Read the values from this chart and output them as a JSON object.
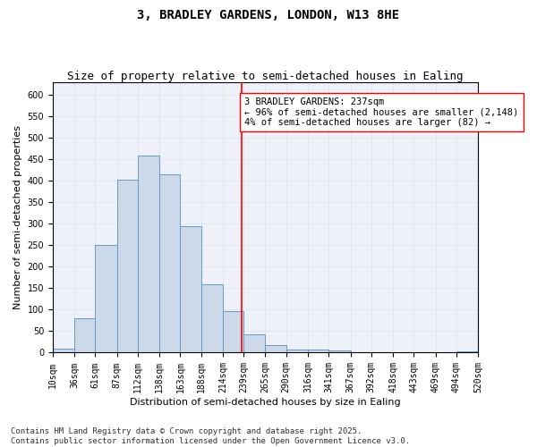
{
  "title_line1": "3, BRADLEY GARDENS, LONDON, W13 8HE",
  "title_line2": "Size of property relative to semi-detached houses in Ealing",
  "xlabel": "Distribution of semi-detached houses by size in Ealing",
  "ylabel": "Number of semi-detached properties",
  "bin_labels": [
    "10sqm",
    "36sqm",
    "61sqm",
    "87sqm",
    "112sqm",
    "138sqm",
    "163sqm",
    "188sqm",
    "214sqm",
    "239sqm",
    "265sqm",
    "290sqm",
    "316sqm",
    "341sqm",
    "367sqm",
    "392sqm",
    "418sqm",
    "443sqm",
    "469sqm",
    "494sqm",
    "520sqm"
  ],
  "bin_edges": [
    10,
    36,
    61,
    87,
    112,
    138,
    163,
    188,
    214,
    239,
    265,
    290,
    316,
    341,
    367,
    392,
    418,
    443,
    469,
    494,
    520
  ],
  "bar_heights": [
    10,
    80,
    250,
    403,
    460,
    415,
    295,
    160,
    97,
    42,
    18,
    7,
    7,
    5,
    0,
    0,
    0,
    0,
    0,
    3
  ],
  "bar_facecolor": "#ccd9e8",
  "bar_edgecolor": "#6699cc",
  "grid_color": "#dde4ee",
  "vline_x": 237,
  "vline_color": "red",
  "annotation_text": "3 BRADLEY GARDENS: 237sqm\n← 96% of semi-detached houses are smaller (2,148)\n4% of semi-detached houses are larger (82) →",
  "annotation_box_edgecolor": "red",
  "annotation_box_facecolor": "white",
  "ylim": [
    0,
    630
  ],
  "yticks": [
    0,
    50,
    100,
    150,
    200,
    250,
    300,
    350,
    400,
    450,
    500,
    550,
    600
  ],
  "footnote": "Contains HM Land Registry data © Crown copyright and database right 2025.\nContains public sector information licensed under the Open Government Licence v3.0.",
  "bg_color": "#eef2f8",
  "title_fontsize": 10,
  "subtitle_fontsize": 9,
  "axis_label_fontsize": 8,
  "tick_fontsize": 7,
  "annotation_fontsize": 7.5,
  "footnote_fontsize": 6.5,
  "fig_width": 6.0,
  "fig_height": 5.0,
  "dpi": 100
}
